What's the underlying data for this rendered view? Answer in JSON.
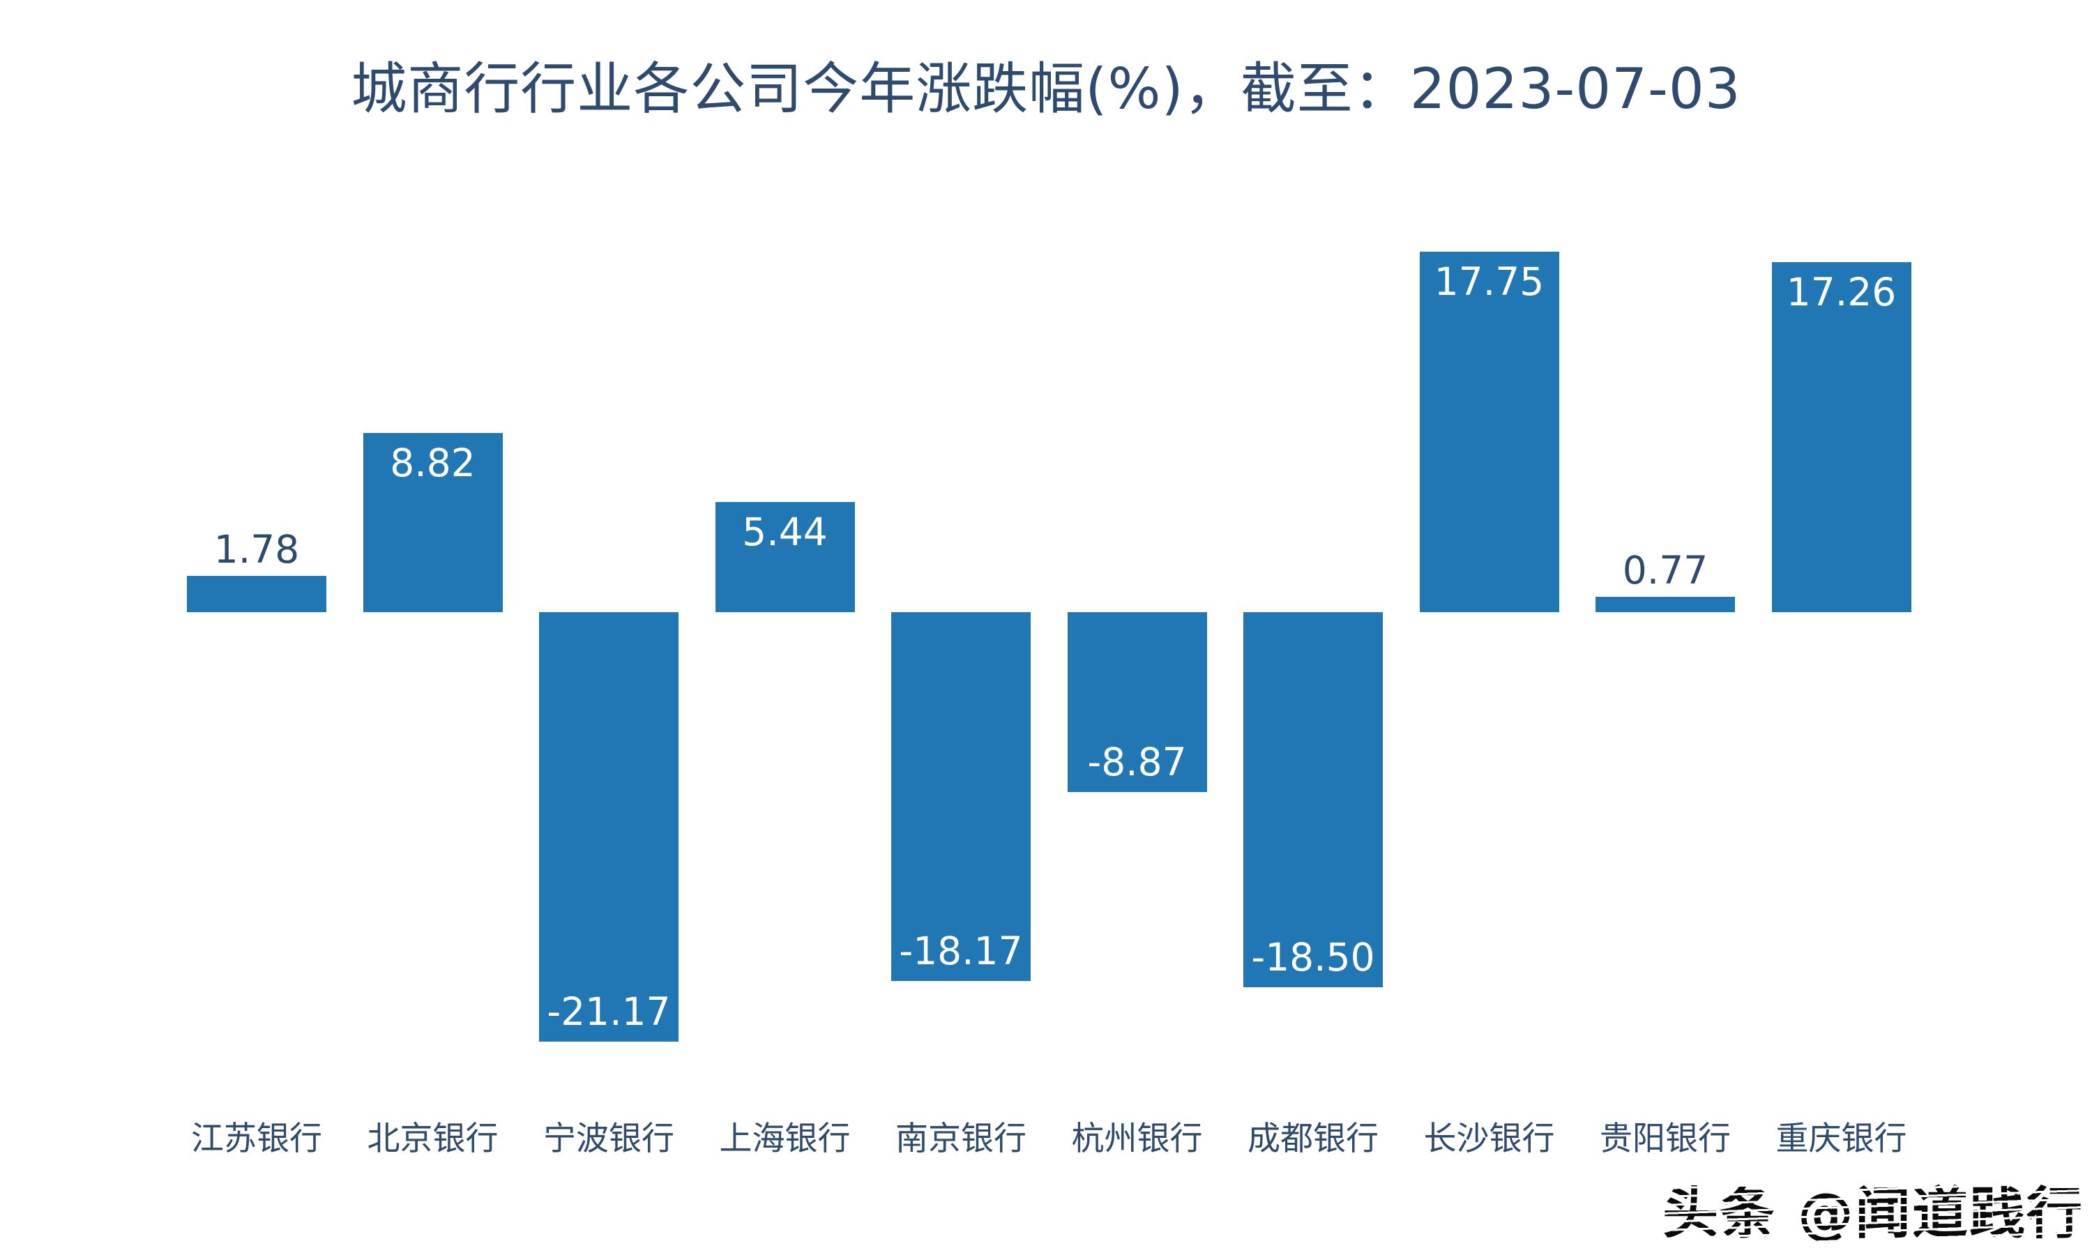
{
  "page": {
    "background": "#ffffff"
  },
  "title": "城商行行业各公司今年涨跌幅(%)，截至：2023-07-03",
  "watermark": "头条 @闻道践行",
  "colors": {
    "bar": "#2077b4",
    "title_text": "#2e4a6e",
    "value_label_dark": "#2e4a6e",
    "value_label_light": "#ffffff",
    "axis_label": "#2e4a6e",
    "watermark_text": "#0a0a0a",
    "background": "#ffffff"
  },
  "chart_data": {
    "type": "bar",
    "title": "城商行行业各公司今年涨跌幅(%)，截至：2023-07-03",
    "categories": [
      "江苏银行",
      "北京银行",
      "宁波银行",
      "上海银行",
      "南京银行",
      "杭州银行",
      "成都银行",
      "长沙银行",
      "贵阳银行",
      "重庆银行"
    ],
    "values": [
      1.78,
      8.82,
      -21.17,
      5.44,
      -18.17,
      -8.87,
      -18.5,
      17.75,
      0.77,
      17.26
    ],
    "value_labels": [
      "1.78",
      "8.82",
      "-21.17",
      "5.44",
      "-18.17",
      "-8.87",
      "-18.50",
      "17.75",
      "0.77",
      "17.26"
    ],
    "xlabel": "",
    "ylabel": "",
    "ylim": [
      -23,
      19
    ],
    "baseline": 0,
    "grid": false,
    "legend": false,
    "axes_visible": false,
    "label_placement": "inside bar end when bar is tall, above bar when bar is short"
  }
}
